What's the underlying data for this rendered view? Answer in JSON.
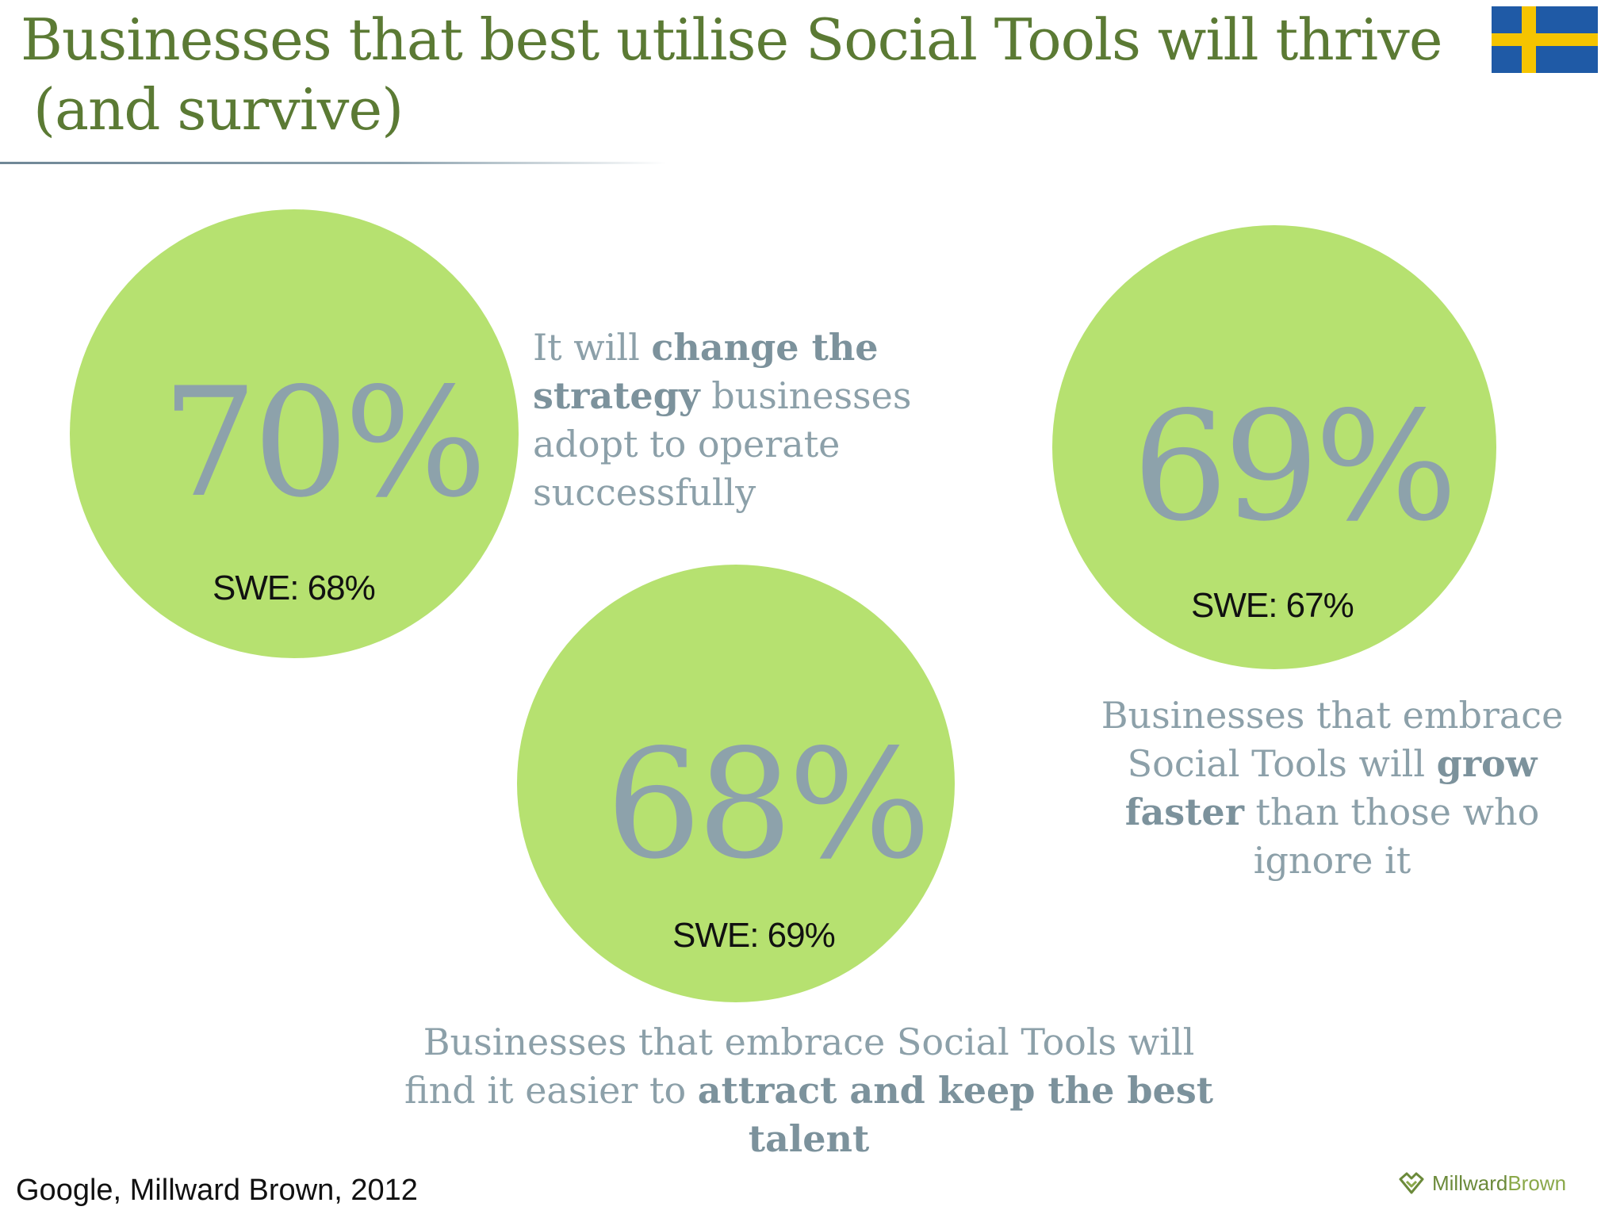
{
  "title": {
    "line1": "Businesses that best utilise Social Tools will thrive",
    "line2": "(and survive)"
  },
  "flag_icon": "sweden-flag-icon",
  "colors": {
    "title": "#5b7a34",
    "circle": "#b6e170",
    "percent_text": "#8da2ab",
    "caption_text": "#8ca0a9",
    "flag_blue": "#1f5aa6",
    "flag_yellow": "#f5c400"
  },
  "stats": [
    {
      "percent": "70%",
      "swe": "SWE: 68%",
      "caption": {
        "pre": "It will ",
        "bold": "change the strategy",
        "post": " businesses adopt to operate successfully"
      }
    },
    {
      "percent": "68%",
      "swe": "SWE: 69%",
      "caption": {
        "pre": "Businesses that embrace Social Tools will find it easier to ",
        "bold": "attract and keep the best talent",
        "post": ""
      }
    },
    {
      "percent": "69%",
      "swe": "SWE: 67%",
      "caption": {
        "pre": "Businesses that embrace Social Tools will ",
        "bold": "grow faster",
        "post": " than those who ignore it"
      }
    }
  ],
  "footer": {
    "source": "Google, Millward Brown, 2012",
    "logo_part1": "Millward",
    "logo_part2": "Brown"
  }
}
